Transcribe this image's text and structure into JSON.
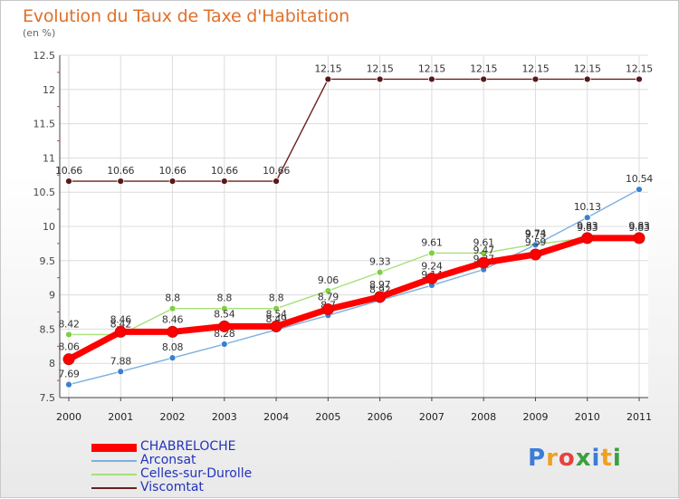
{
  "title": "Evolution du Taux de Taxe d'Habitation",
  "unit_label": "(en %)",
  "logo": {
    "text": "Proxiti",
    "letters": [
      {
        "ch": "P",
        "color": "#3a7dd8"
      },
      {
        "ch": "r",
        "color": "#f0a020"
      },
      {
        "ch": "o",
        "color": "#e84040"
      },
      {
        "ch": "x",
        "color": "#3aa040"
      },
      {
        "ch": "i",
        "color": "#3a7dd8"
      },
      {
        "ch": "t",
        "color": "#f0a020"
      },
      {
        "ch": "i",
        "color": "#3aa040"
      }
    ]
  },
  "chart_data": {
    "type": "line",
    "x": [
      "2000",
      "2001",
      "2002",
      "2003",
      "2004",
      "2005",
      "2006",
      "2007",
      "2008",
      "2009",
      "2010",
      "2011"
    ],
    "ylim": [
      7.5,
      12.5
    ],
    "yticks": [
      "7.5",
      "8",
      "8.5",
      "9",
      "9.5",
      "10",
      "10.5",
      "11",
      "11.5",
      "12",
      "12.5"
    ],
    "grid": true,
    "series": [
      {
        "name": "Viscomtat",
        "color": "#6b2020",
        "marker": "#5a1818",
        "values": [
          10.66,
          10.66,
          10.66,
          10.66,
          10.66,
          12.15,
          12.15,
          12.15,
          12.15,
          12.15,
          12.15,
          12.15
        ],
        "labels": [
          "10.66",
          "10.66",
          "10.66",
          "10.66",
          "10.66",
          "12.15",
          "12.15",
          "12.15",
          "12.15",
          "12.15",
          "12.15",
          "12.15"
        ]
      },
      {
        "name": "Celles-sur-Durolle",
        "color": "#a6e07a",
        "marker": "#7ed040",
        "values": [
          8.42,
          8.42,
          8.8,
          8.8,
          8.8,
          9.06,
          9.33,
          9.61,
          9.61,
          9.74,
          9.83,
          9.83
        ],
        "labels": [
          "8.42",
          "8.42",
          "8.8",
          "8.8",
          "8.8",
          "9.06",
          "9.33",
          "9.61",
          "9.61",
          "9.74",
          "9.83",
          "9.83"
        ]
      },
      {
        "name": "Arconsat",
        "color": "#7ab0e0",
        "marker": "#3a80d0",
        "values": [
          7.69,
          7.88,
          8.08,
          8.28,
          8.49,
          8.7,
          8.92,
          9.14,
          9.37,
          9.73,
          10.13,
          10.54
        ],
        "labels": [
          "7.69",
          "7.88",
          "8.08",
          "8.28",
          "8.49",
          "8.7",
          "8.92",
          "9.14",
          "9.37",
          "9.73",
          "10.13",
          "10.54"
        ]
      },
      {
        "name": "CHABRELOCHE",
        "color": "#ff0000",
        "marker": "#ff0000",
        "values": [
          8.06,
          8.46,
          8.46,
          8.54,
          8.54,
          8.79,
          8.97,
          9.24,
          9.47,
          9.59,
          9.83,
          9.83
        ],
        "labels": [
          "8.06",
          "8.46",
          "8.46",
          "8.54",
          "8.54",
          "8.79",
          "8.97",
          "9.24",
          "9.47",
          "9.59",
          "9.83",
          "9.83"
        ]
      }
    ],
    "legend_order": [
      "CHABRELOCHE",
      "Arconsat",
      "Celles-sur-Durolle",
      "Viscomtat"
    ]
  }
}
